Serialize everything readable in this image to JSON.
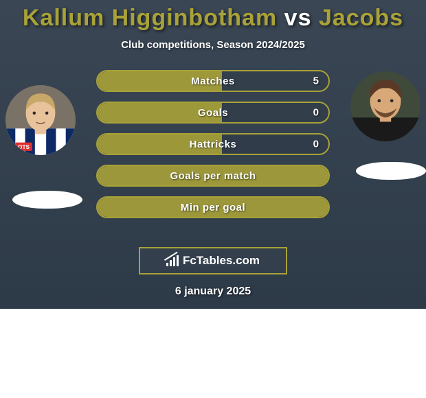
{
  "title": {
    "player1": "Kallum Higginbotham",
    "vs": "vs",
    "player2": "Jacobs",
    "player1_color": "#a8a238",
    "vs_color": "#ffffff",
    "player2_color": "#a8a238"
  },
  "subtitle": "Club competitions, Season 2024/2025",
  "accent_color": "#a8a238",
  "background_gradient": [
    "#3a4654",
    "#2d3a47"
  ],
  "stats": [
    {
      "label": "Matches",
      "value": "5",
      "fill_pct": 54
    },
    {
      "label": "Goals",
      "value": "0",
      "fill_pct": 54
    },
    {
      "label": "Hattricks",
      "value": "0",
      "fill_pct": 54
    },
    {
      "label": "Goals per match",
      "value": "",
      "fill_pct": 100
    },
    {
      "label": "Min per goal",
      "value": "",
      "fill_pct": 100
    }
  ],
  "brand": "FcTables.com",
  "date": "6 january 2025",
  "player1_avatar": {
    "bg": "#7a7266",
    "skin": "#e8c29a",
    "hair": "#c7a868",
    "jersey_stripes": [
      "#0e2a66",
      "#ffffff"
    ],
    "badge_bg": "#e03030",
    "badge_text": "QTS"
  },
  "player2_avatar": {
    "bg": "#3f4a3a",
    "skin": "#d8a878",
    "hair": "#5a3a26",
    "jersey": "#1a1a1a"
  }
}
